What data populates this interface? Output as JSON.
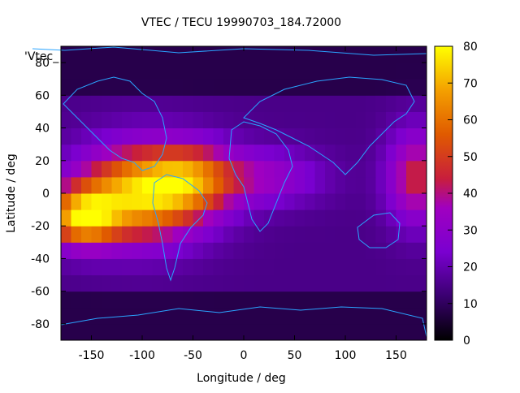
{
  "chart_data": {
    "type": "heatmap",
    "title": "VTEC / TECU 19990703_184.72000",
    "xlabel": "Longitude / deg",
    "ylabel": "Latitude / deg",
    "key_label": "'Vtec_",
    "xlim": [
      -180,
      180
    ],
    "ylim": [
      -90,
      90
    ],
    "xticks": [
      -150,
      -100,
      -50,
      0,
      50,
      100,
      150
    ],
    "yticks": [
      -80,
      -60,
      -40,
      -20,
      0,
      20,
      40,
      60,
      80
    ],
    "colorbar": {
      "range": [
        0,
        80
      ],
      "ticks": [
        0,
        10,
        20,
        30,
        40,
        50,
        60,
        70,
        80
      ],
      "palette": "gnuplot rgbformulae 7,5,15"
    },
    "grid": false,
    "gridded_field": {
      "lon_step": 10,
      "lat_step": 10,
      "background_high_lat": 8,
      "background_mid": 15,
      "anomaly_blobs": [
        {
          "lon": -100,
          "lat": 0,
          "sigma_lon": 45,
          "sigma_lat": 20,
          "peak": 58
        },
        {
          "lon": -160,
          "lat": -15,
          "sigma_lon": 25,
          "sigma_lat": 12,
          "peak": 50
        },
        {
          "lon": -50,
          "lat": 10,
          "sigma_lon": 30,
          "sigma_lat": 14,
          "peak": 28
        },
        {
          "lon": 20,
          "lat": 10,
          "sigma_lon": 40,
          "sigma_lat": 12,
          "peak": 18
        },
        {
          "lon": 170,
          "lat": 10,
          "sigma_lon": 20,
          "sigma_lat": 20,
          "peak": 30
        }
      ]
    }
  }
}
